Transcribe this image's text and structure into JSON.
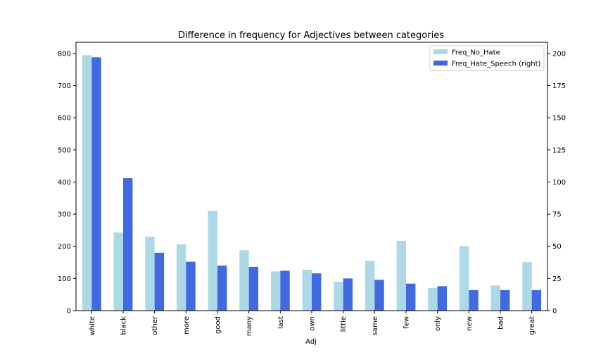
{
  "chart_data": {
    "type": "bar",
    "title": "Difference in frequency for Adjectives between categories",
    "xlabel": "Adj",
    "ylabel": "",
    "ylabel_right": "",
    "categories": [
      "white",
      "black",
      "other",
      "more",
      "good",
      "many",
      "last",
      "own",
      "little",
      "same",
      "few",
      "only",
      "new",
      "bad",
      "great"
    ],
    "series": [
      {
        "name": "Freq_No_Hate",
        "axis": "left",
        "color": "#add8e6",
        "values": [
          795,
          243,
          230,
          206,
          310,
          188,
          122,
          127,
          90,
          155,
          217,
          70,
          201,
          78,
          151
        ]
      },
      {
        "name": "Freq_Hate_Speech (right)",
        "axis": "right",
        "color": "#4169e1",
        "values": [
          197,
          103,
          45,
          38,
          35,
          34,
          31,
          29,
          25,
          24,
          21,
          19,
          16,
          16,
          16
        ]
      }
    ],
    "ylim_left": [
      0,
      835
    ],
    "ylim_right": [
      0,
      208.7
    ],
    "yticks_left": [
      0,
      100,
      200,
      300,
      400,
      500,
      600,
      700,
      800
    ],
    "yticks_right": [
      0,
      25,
      50,
      75,
      100,
      125,
      150,
      175,
      200
    ],
    "grid": false,
    "legend_position": "top-right"
  }
}
